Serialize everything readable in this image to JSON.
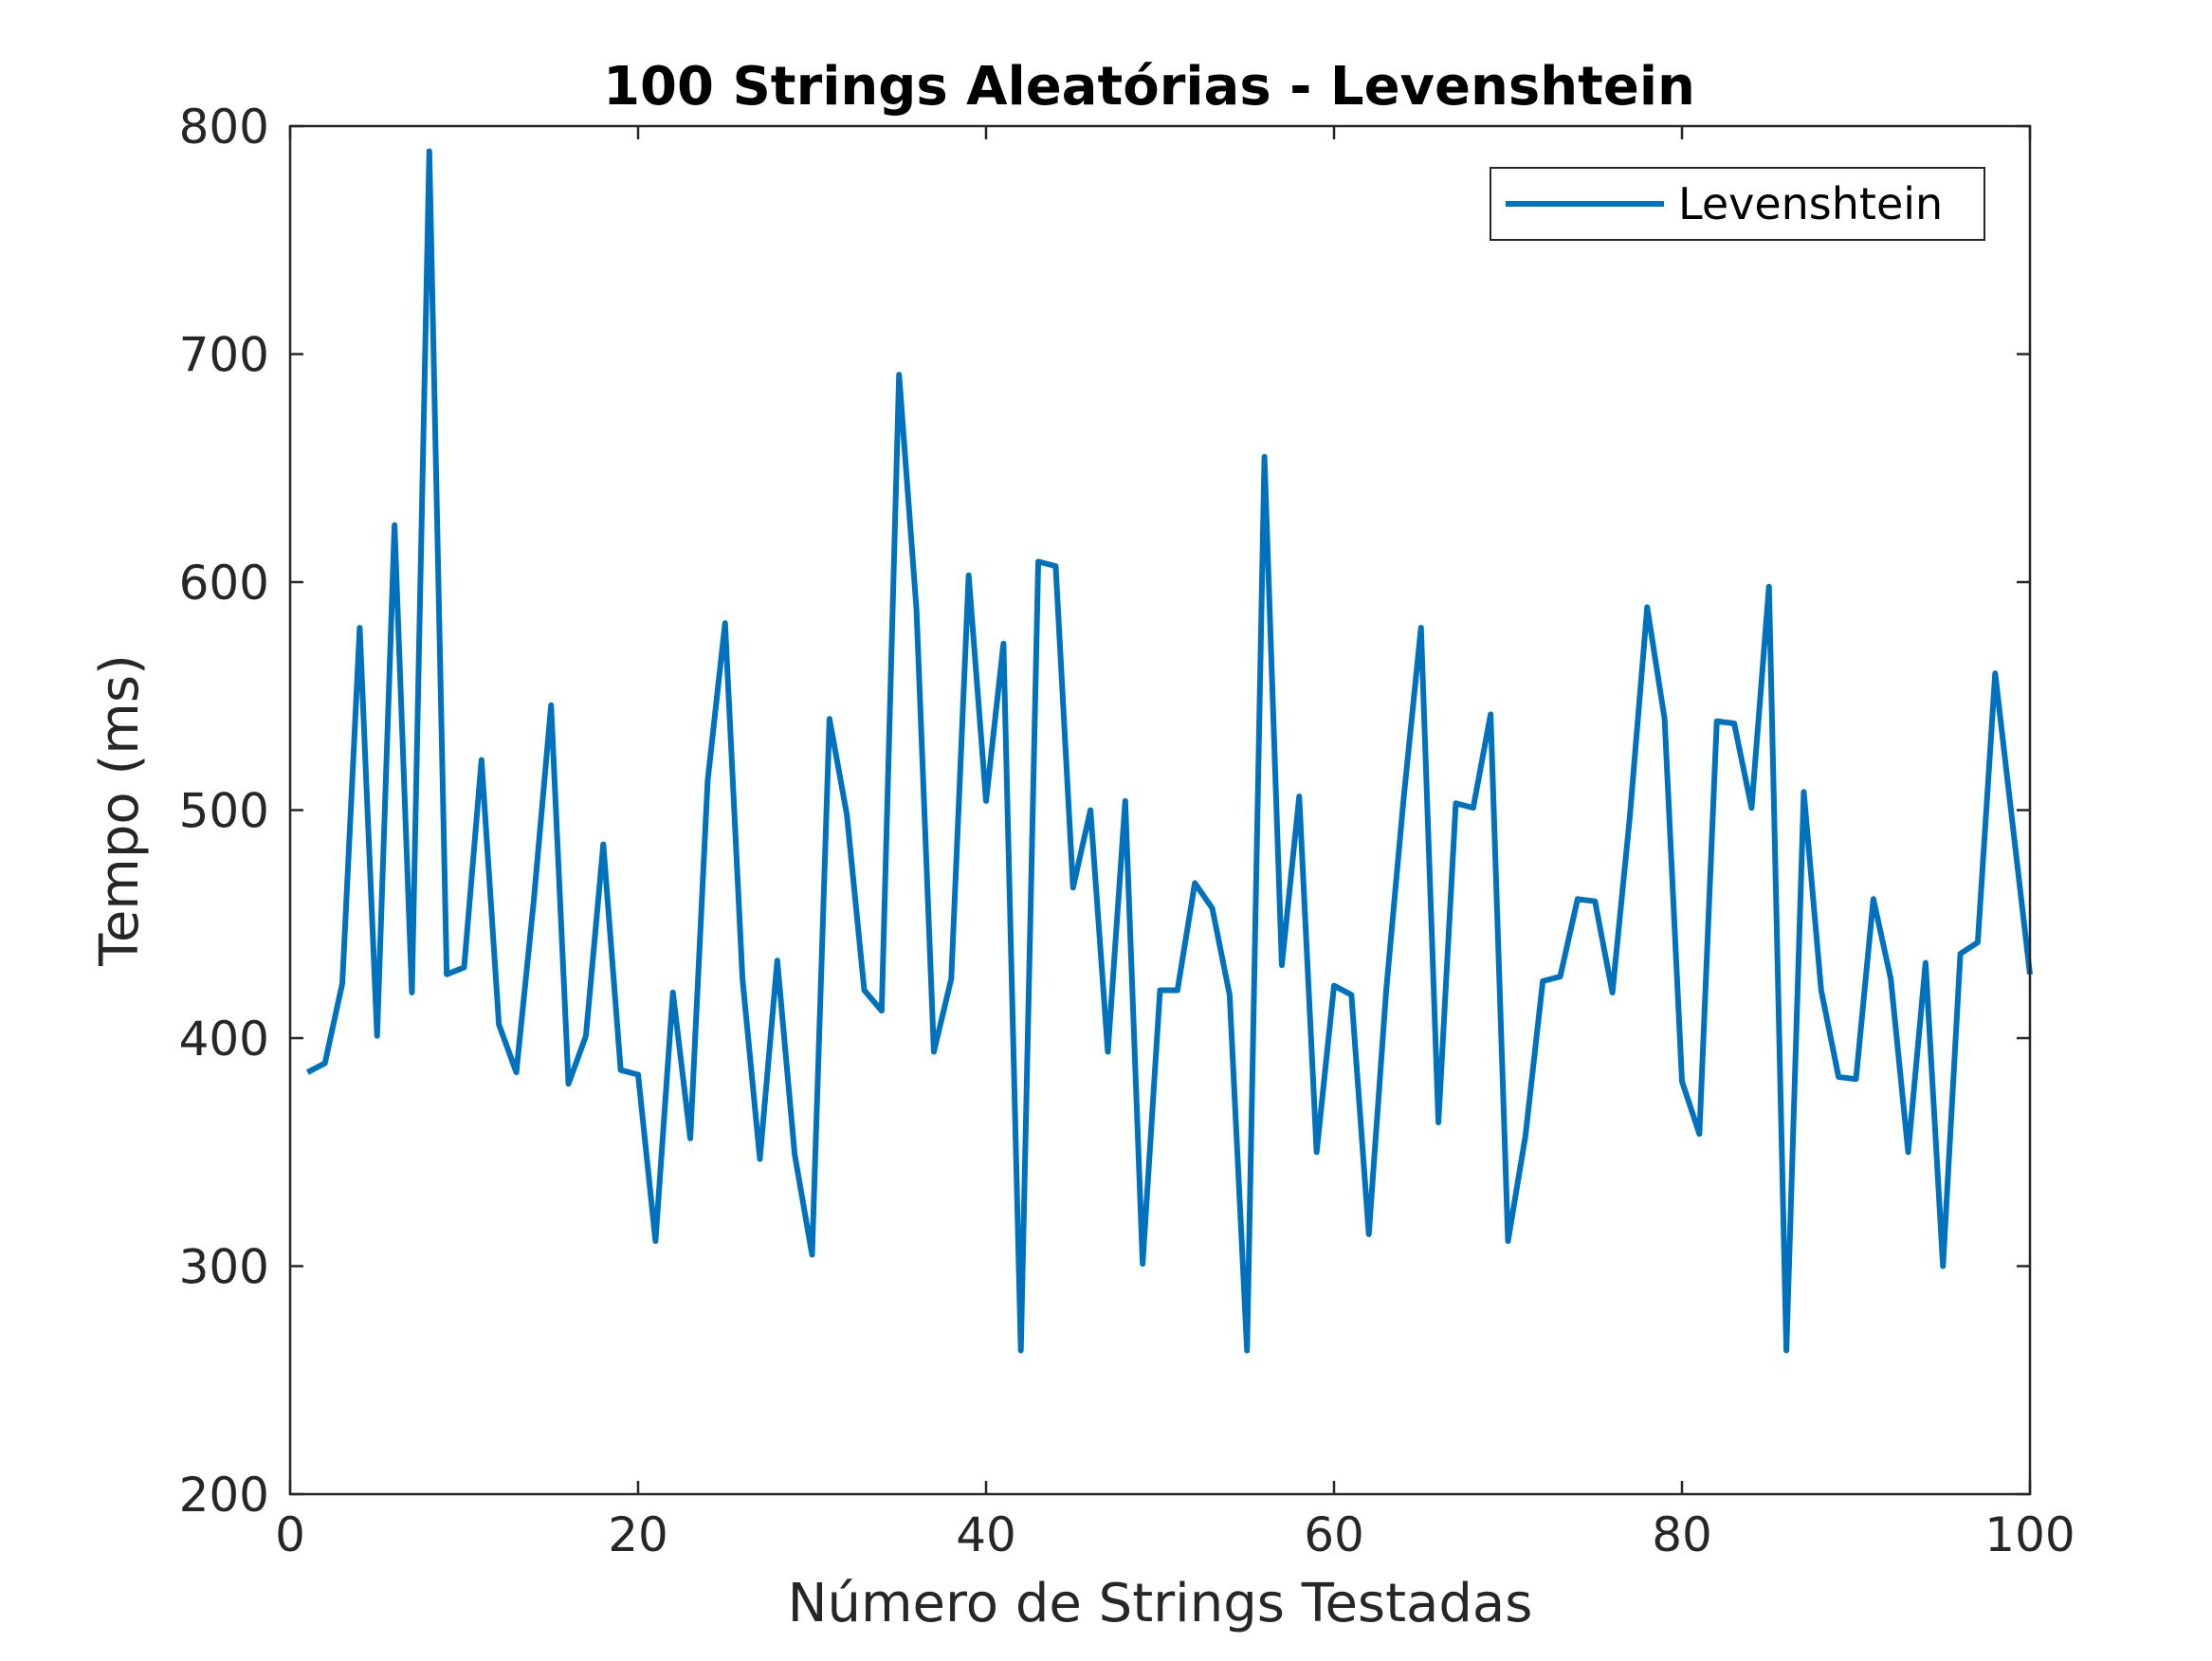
{
  "chart_data": {
    "type": "line",
    "title": "100 Strings Aleatórias - Levenshtein",
    "xlabel": "Número de Strings Testadas",
    "ylabel": "Tempo (ms)",
    "xlim": [
      0,
      100
    ],
    "ylim": [
      200,
      800
    ],
    "xticks": [
      0,
      20,
      40,
      60,
      80,
      100
    ],
    "yticks": [
      200,
      300,
      400,
      500,
      600,
      700,
      800
    ],
    "grid": false,
    "legend_position": "top-right",
    "series": [
      {
        "name": "Levenshtein",
        "color": "#0072BD",
        "x": [
          1,
          2,
          3,
          4,
          5,
          6,
          7,
          8,
          9,
          10,
          11,
          12,
          13,
          14,
          15,
          16,
          17,
          18,
          19,
          20,
          21,
          22,
          23,
          24,
          25,
          26,
          27,
          28,
          29,
          30,
          31,
          32,
          33,
          34,
          35,
          36,
          37,
          38,
          39,
          40,
          41,
          42,
          43,
          44,
          45,
          46,
          47,
          48,
          49,
          50,
          51,
          52,
          53,
          54,
          55,
          56,
          57,
          58,
          59,
          60,
          61,
          62,
          63,
          64,
          65,
          66,
          67,
          68,
          69,
          70,
          71,
          72,
          73,
          74,
          75,
          76,
          77,
          78,
          79,
          80,
          81,
          82,
          83,
          84,
          85,
          86,
          87,
          88,
          89,
          90,
          91,
          92,
          93,
          94,
          95,
          96,
          97,
          98,
          99,
          100
        ],
        "values": [
          385,
          389,
          424,
          580,
          401,
          625,
          420,
          789,
          428,
          431,
          522,
          406,
          385,
          460,
          546,
          380,
          401,
          485,
          386,
          384,
          311,
          420,
          356,
          513,
          582,
          426,
          347,
          434,
          349,
          305,
          540,
          498,
          421,
          412,
          691,
          588,
          394,
          426,
          603,
          504,
          573,
          263,
          609,
          607,
          466,
          500,
          394,
          504,
          301,
          421,
          421,
          468,
          457,
          419,
          263,
          655,
          432,
          506,
          350,
          423,
          419,
          314,
          421,
          505,
          580,
          363,
          503,
          501,
          542,
          311,
          357,
          425,
          427,
          461,
          460,
          420,
          497,
          589,
          540,
          381,
          358,
          539,
          538,
          501,
          598,
          263,
          508,
          421,
          383,
          382,
          461,
          426,
          350,
          433,
          300,
          437,
          442,
          560,
          494,
          428
        ]
      }
    ]
  }
}
